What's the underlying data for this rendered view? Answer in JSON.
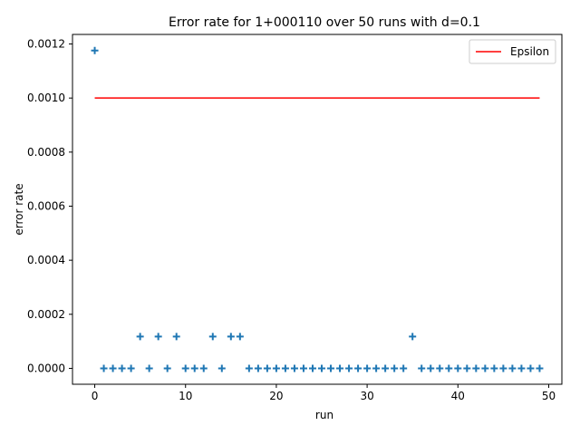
{
  "chart_data": {
    "type": "scatter",
    "title": "Error rate for 1+000110 over 50 runs with d=0.1",
    "xlabel": "run",
    "ylabel": "error rate",
    "xlim": [
      -2.45,
      51.45
    ],
    "ylim": [
      -5.88e-05,
      0.0012353
    ],
    "xticks": [
      0,
      10,
      20,
      30,
      40,
      50
    ],
    "xtick_labels": [
      "0",
      "10",
      "20",
      "30",
      "40",
      "50"
    ],
    "yticks": [
      0,
      0.0002,
      0.0004,
      0.0006,
      0.0008,
      0.001,
      0.0012
    ],
    "ytick_labels": [
      "0.0000",
      "0.0002",
      "0.0004",
      "0.0006",
      "0.0008",
      "0.0010",
      "0.0012"
    ],
    "grid": false,
    "legend": {
      "position": "upper right",
      "entries": [
        {
          "label": "Epsilon",
          "color": "#ff0000",
          "marker": "line"
        }
      ]
    },
    "series": [
      {
        "name": "",
        "type": "scatter",
        "marker": "+",
        "color": "#1f77b4",
        "x": [
          0,
          1,
          2,
          3,
          4,
          5,
          6,
          7,
          8,
          9,
          10,
          11,
          12,
          13,
          14,
          15,
          16,
          17,
          18,
          19,
          20,
          21,
          22,
          23,
          24,
          25,
          26,
          27,
          28,
          29,
          30,
          31,
          32,
          33,
          34,
          35,
          36,
          37,
          38,
          39,
          40,
          41,
          42,
          43,
          44,
          45,
          46,
          47,
          48,
          49
        ],
        "y": [
          0.001176,
          0,
          0,
          0,
          0,
          0.0001176,
          0,
          0.0001176,
          0,
          0.0001176,
          0,
          0,
          0,
          0.0001176,
          0,
          0.0001176,
          0.0001176,
          0,
          0,
          0,
          0,
          0,
          0,
          0,
          0,
          0,
          0,
          0,
          0,
          0,
          0,
          0,
          0,
          0,
          0,
          0.0001176,
          0,
          0,
          0,
          0,
          0,
          0,
          0,
          0,
          0,
          0,
          0,
          0,
          0,
          0
        ]
      },
      {
        "name": "Epsilon",
        "type": "line",
        "color": "#ff0000",
        "x": [
          0,
          49
        ],
        "y": [
          0.001,
          0.001
        ]
      }
    ]
  }
}
